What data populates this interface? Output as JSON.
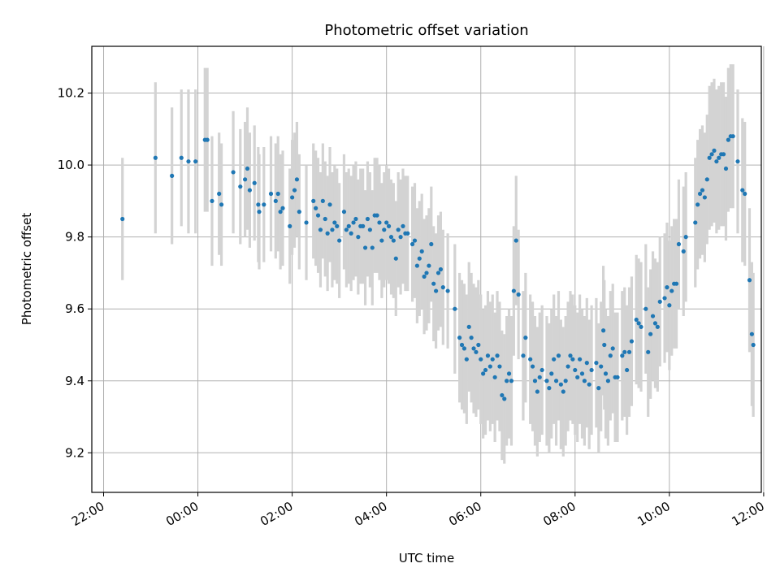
{
  "chart_data": {
    "type": "scatter",
    "title": "Photometric offset variation",
    "xlabel": "UTC time",
    "ylabel": "Photometric offset",
    "x_unit": "hours since 00:00 UTC",
    "xlim": [
      -2.25,
      11.95
    ],
    "ylim": [
      9.09,
      10.33
    ],
    "x_ticks": [
      {
        "value": -2,
        "label": "22:00"
      },
      {
        "value": 0,
        "label": "00:00"
      },
      {
        "value": 2,
        "label": "02:00"
      },
      {
        "value": 4,
        "label": "04:00"
      },
      {
        "value": 6,
        "label": "06:00"
      },
      {
        "value": 8,
        "label": "08:00"
      },
      {
        "value": 10,
        "label": "10:00"
      },
      {
        "value": 12,
        "label": "12:00"
      }
    ],
    "y_ticks": [
      {
        "value": 9.2,
        "label": "9.2"
      },
      {
        "value": 9.4,
        "label": "9.4"
      },
      {
        "value": 9.6,
        "label": "9.6"
      },
      {
        "value": 9.8,
        "label": "9.8"
      },
      {
        "value": 10.0,
        "label": "10.0"
      },
      {
        "value": 10.2,
        "label": "10.2"
      }
    ],
    "grid": true,
    "marker_color": "#1f77b4",
    "errorbar_color": "#d3d3d3",
    "points": [
      [
        -1.6,
        9.85,
        0.17
      ],
      [
        -0.9,
        10.02,
        0.21
      ],
      [
        -0.55,
        9.97,
        0.19
      ],
      [
        -0.35,
        10.02,
        0.19
      ],
      [
        -0.2,
        10.01,
        0.2
      ],
      [
        -0.05,
        10.01,
        0.2
      ],
      [
        0.15,
        10.07,
        0.2
      ],
      [
        0.2,
        10.07,
        0.2
      ],
      [
        0.3,
        9.9,
        0.18
      ],
      [
        0.45,
        9.92,
        0.17
      ],
      [
        0.5,
        9.89,
        0.17
      ],
      [
        0.75,
        9.98,
        0.17
      ],
      [
        0.9,
        9.94,
        0.16
      ],
      [
        1.0,
        9.96,
        0.16
      ],
      [
        1.05,
        9.99,
        0.17
      ],
      [
        1.1,
        9.93,
        0.16
      ],
      [
        1.2,
        9.95,
        0.16
      ],
      [
        1.28,
        9.89,
        0.16
      ],
      [
        1.3,
        9.87,
        0.16
      ],
      [
        1.4,
        9.89,
        0.16
      ],
      [
        1.55,
        9.92,
        0.16
      ],
      [
        1.65,
        9.9,
        0.16
      ],
      [
        1.7,
        9.92,
        0.16
      ],
      [
        1.75,
        9.87,
        0.16
      ],
      [
        1.8,
        9.88,
        0.16
      ],
      [
        1.95,
        9.83,
        0.16
      ],
      [
        2.0,
        9.91,
        0.16
      ],
      [
        2.05,
        9.93,
        0.16
      ],
      [
        2.1,
        9.96,
        0.16
      ],
      [
        2.15,
        9.87,
        0.16
      ],
      [
        2.3,
        9.84,
        0.16
      ],
      [
        2.45,
        9.9,
        0.16
      ],
      [
        2.5,
        9.88,
        0.16
      ],
      [
        2.55,
        9.86,
        0.16
      ],
      [
        2.6,
        9.82,
        0.16
      ],
      [
        2.65,
        9.9,
        0.16
      ],
      [
        2.7,
        9.85,
        0.16
      ],
      [
        2.75,
        9.81,
        0.16
      ],
      [
        2.8,
        9.89,
        0.16
      ],
      [
        2.85,
        9.82,
        0.16
      ],
      [
        2.9,
        9.84,
        0.16
      ],
      [
        2.95,
        9.83,
        0.16
      ],
      [
        3.0,
        9.79,
        0.16
      ],
      [
        3.1,
        9.87,
        0.16
      ],
      [
        3.15,
        9.82,
        0.16
      ],
      [
        3.2,
        9.83,
        0.16
      ],
      [
        3.25,
        9.81,
        0.16
      ],
      [
        3.3,
        9.84,
        0.16
      ],
      [
        3.35,
        9.85,
        0.16
      ],
      [
        3.4,
        9.8,
        0.16
      ],
      [
        3.45,
        9.83,
        0.16
      ],
      [
        3.5,
        9.83,
        0.16
      ],
      [
        3.55,
        9.77,
        0.16
      ],
      [
        3.6,
        9.85,
        0.16
      ],
      [
        3.65,
        9.82,
        0.16
      ],
      [
        3.7,
        9.77,
        0.16
      ],
      [
        3.75,
        9.86,
        0.16
      ],
      [
        3.8,
        9.86,
        0.16
      ],
      [
        3.85,
        9.84,
        0.16
      ],
      [
        3.9,
        9.79,
        0.16
      ],
      [
        3.95,
        9.82,
        0.16
      ],
      [
        4.0,
        9.84,
        0.16
      ],
      [
        4.05,
        9.83,
        0.16
      ],
      [
        4.1,
        9.8,
        0.16
      ],
      [
        4.15,
        9.79,
        0.16
      ],
      [
        4.2,
        9.74,
        0.16
      ],
      [
        4.25,
        9.82,
        0.16
      ],
      [
        4.3,
        9.8,
        0.16
      ],
      [
        4.35,
        9.83,
        0.16
      ],
      [
        4.4,
        9.81,
        0.16
      ],
      [
        4.45,
        9.81,
        0.16
      ],
      [
        4.55,
        9.78,
        0.16
      ],
      [
        4.6,
        9.79,
        0.16
      ],
      [
        4.65,
        9.72,
        0.16
      ],
      [
        4.7,
        9.74,
        0.16
      ],
      [
        4.75,
        9.76,
        0.16
      ],
      [
        4.8,
        9.69,
        0.16
      ],
      [
        4.85,
        9.7,
        0.16
      ],
      [
        4.9,
        9.72,
        0.16
      ],
      [
        4.95,
        9.78,
        0.16
      ],
      [
        5.0,
        9.67,
        0.16
      ],
      [
        5.05,
        9.65,
        0.16
      ],
      [
        5.1,
        9.7,
        0.16
      ],
      [
        5.15,
        9.71,
        0.16
      ],
      [
        5.2,
        9.66,
        0.16
      ],
      [
        5.3,
        9.65,
        0.16
      ],
      [
        5.45,
        9.6,
        0.18
      ],
      [
        5.55,
        9.52,
        0.18
      ],
      [
        5.6,
        9.5,
        0.18
      ],
      [
        5.65,
        9.49,
        0.18
      ],
      [
        5.7,
        9.46,
        0.18
      ],
      [
        5.75,
        9.55,
        0.18
      ],
      [
        5.8,
        9.52,
        0.18
      ],
      [
        5.85,
        9.49,
        0.18
      ],
      [
        5.9,
        9.48,
        0.18
      ],
      [
        5.95,
        9.5,
        0.18
      ],
      [
        6.0,
        9.46,
        0.18
      ],
      [
        6.05,
        9.42,
        0.18
      ],
      [
        6.1,
        9.43,
        0.18
      ],
      [
        6.15,
        9.47,
        0.18
      ],
      [
        6.2,
        9.44,
        0.18
      ],
      [
        6.25,
        9.46,
        0.18
      ],
      [
        6.3,
        9.41,
        0.18
      ],
      [
        6.35,
        9.47,
        0.18
      ],
      [
        6.4,
        9.44,
        0.18
      ],
      [
        6.45,
        9.36,
        0.18
      ],
      [
        6.5,
        9.35,
        0.18
      ],
      [
        6.55,
        9.4,
        0.18
      ],
      [
        6.6,
        9.42,
        0.18
      ],
      [
        6.65,
        9.4,
        0.18
      ],
      [
        6.7,
        9.65,
        0.18
      ],
      [
        6.75,
        9.79,
        0.18
      ],
      [
        6.8,
        9.64,
        0.18
      ],
      [
        6.9,
        9.47,
        0.18
      ],
      [
        6.95,
        9.52,
        0.18
      ],
      [
        7.05,
        9.46,
        0.18
      ],
      [
        7.1,
        9.44,
        0.18
      ],
      [
        7.15,
        9.4,
        0.18
      ],
      [
        7.2,
        9.37,
        0.18
      ],
      [
        7.25,
        9.41,
        0.18
      ],
      [
        7.3,
        9.43,
        0.18
      ],
      [
        7.4,
        9.4,
        0.18
      ],
      [
        7.45,
        9.38,
        0.18
      ],
      [
        7.5,
        9.42,
        0.18
      ],
      [
        7.55,
        9.46,
        0.18
      ],
      [
        7.6,
        9.4,
        0.18
      ],
      [
        7.65,
        9.47,
        0.18
      ],
      [
        7.7,
        9.39,
        0.18
      ],
      [
        7.75,
        9.37,
        0.18
      ],
      [
        7.8,
        9.4,
        0.18
      ],
      [
        7.85,
        9.44,
        0.18
      ],
      [
        7.9,
        9.47,
        0.18
      ],
      [
        7.95,
        9.46,
        0.18
      ],
      [
        8.0,
        9.43,
        0.18
      ],
      [
        8.05,
        9.41,
        0.18
      ],
      [
        8.1,
        9.46,
        0.18
      ],
      [
        8.15,
        9.42,
        0.18
      ],
      [
        8.2,
        9.4,
        0.18
      ],
      [
        8.25,
        9.45,
        0.18
      ],
      [
        8.3,
        9.39,
        0.18
      ],
      [
        8.35,
        9.43,
        0.18
      ],
      [
        8.45,
        9.45,
        0.18
      ],
      [
        8.5,
        9.38,
        0.18
      ],
      [
        8.55,
        9.44,
        0.18
      ],
      [
        8.6,
        9.54,
        0.18
      ],
      [
        8.62,
        9.5,
        0.18
      ],
      [
        8.65,
        9.42,
        0.18
      ],
      [
        8.7,
        9.4,
        0.18
      ],
      [
        8.75,
        9.47,
        0.18
      ],
      [
        8.8,
        9.49,
        0.18
      ],
      [
        8.85,
        9.41,
        0.18
      ],
      [
        8.9,
        9.41,
        0.18
      ],
      [
        9.0,
        9.47,
        0.18
      ],
      [
        9.05,
        9.48,
        0.18
      ],
      [
        9.1,
        9.43,
        0.18
      ],
      [
        9.15,
        9.48,
        0.18
      ],
      [
        9.2,
        9.51,
        0.18
      ],
      [
        9.3,
        9.57,
        0.18
      ],
      [
        9.35,
        9.56,
        0.18
      ],
      [
        9.4,
        9.55,
        0.18
      ],
      [
        9.5,
        9.6,
        0.18
      ],
      [
        9.55,
        9.48,
        0.18
      ],
      [
        9.6,
        9.53,
        0.18
      ],
      [
        9.65,
        9.58,
        0.18
      ],
      [
        9.7,
        9.56,
        0.18
      ],
      [
        9.75,
        9.55,
        0.18
      ],
      [
        9.8,
        9.62,
        0.18
      ],
      [
        9.9,
        9.63,
        0.18
      ],
      [
        9.95,
        9.66,
        0.18
      ],
      [
        10.0,
        9.61,
        0.18
      ],
      [
        10.05,
        9.65,
        0.18
      ],
      [
        10.1,
        9.67,
        0.18
      ],
      [
        10.15,
        9.67,
        0.18
      ],
      [
        10.2,
        9.78,
        0.18
      ],
      [
        10.3,
        9.76,
        0.18
      ],
      [
        10.35,
        9.8,
        0.18
      ],
      [
        10.55,
        9.84,
        0.18
      ],
      [
        10.6,
        9.89,
        0.18
      ],
      [
        10.65,
        9.92,
        0.18
      ],
      [
        10.7,
        9.93,
        0.18
      ],
      [
        10.75,
        9.91,
        0.18
      ],
      [
        10.8,
        9.96,
        0.18
      ],
      [
        10.85,
        10.02,
        0.2
      ],
      [
        10.9,
        10.03,
        0.2
      ],
      [
        10.95,
        10.04,
        0.2
      ],
      [
        11.0,
        10.01,
        0.2
      ],
      [
        11.05,
        10.02,
        0.2
      ],
      [
        11.1,
        10.03,
        0.2
      ],
      [
        11.15,
        10.03,
        0.2
      ],
      [
        11.2,
        9.99,
        0.2
      ],
      [
        11.25,
        10.07,
        0.2
      ],
      [
        11.3,
        10.08,
        0.2
      ],
      [
        11.35,
        10.08,
        0.2
      ],
      [
        11.45,
        10.01,
        0.2
      ],
      [
        11.55,
        9.93,
        0.2
      ],
      [
        11.6,
        9.92,
        0.2
      ],
      [
        11.7,
        9.68,
        0.2
      ],
      [
        11.75,
        9.53,
        0.2
      ],
      [
        11.78,
        9.5,
        0.2
      ]
    ]
  }
}
